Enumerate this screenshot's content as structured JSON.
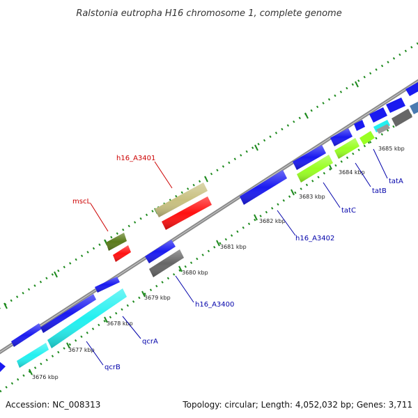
{
  "title": "Ralstonia eutropha H16 chromosome 1, complete genome",
  "footer": {
    "accession": "Accession: NC_008313",
    "summary": "Topology: circular; Length: 4,052,032 bp; Genes: 3,711"
  },
  "tick_labels": [
    "3676 kbp",
    "3677 kbp",
    "3678 kbp",
    "3679 kbp",
    "3680 kbp",
    "3681 kbp",
    "3682 kbp",
    "3683 kbp",
    "3684 kbp",
    "3685 kbp"
  ],
  "gene_labels": [
    "h16_A3401",
    "mscL",
    "h16_A3402",
    "tatC",
    "tatB",
    "tatA",
    "h16_A3400",
    "qcrA",
    "qcrB"
  ],
  "colors": {
    "backbone": "#8a8a8a",
    "tick_green": "#1e8a1e",
    "blue_gene": "#1a1af0",
    "cyan_gene": "#22f0f0",
    "lime_gene": "#99ff22",
    "gray_gene": "#666666",
    "red_gene": "#ff1111",
    "olive_gene": "#5a7a1a",
    "khaki_gene": "#c8c080",
    "label_red": "#cc0000",
    "label_blue": "#0000aa"
  }
}
